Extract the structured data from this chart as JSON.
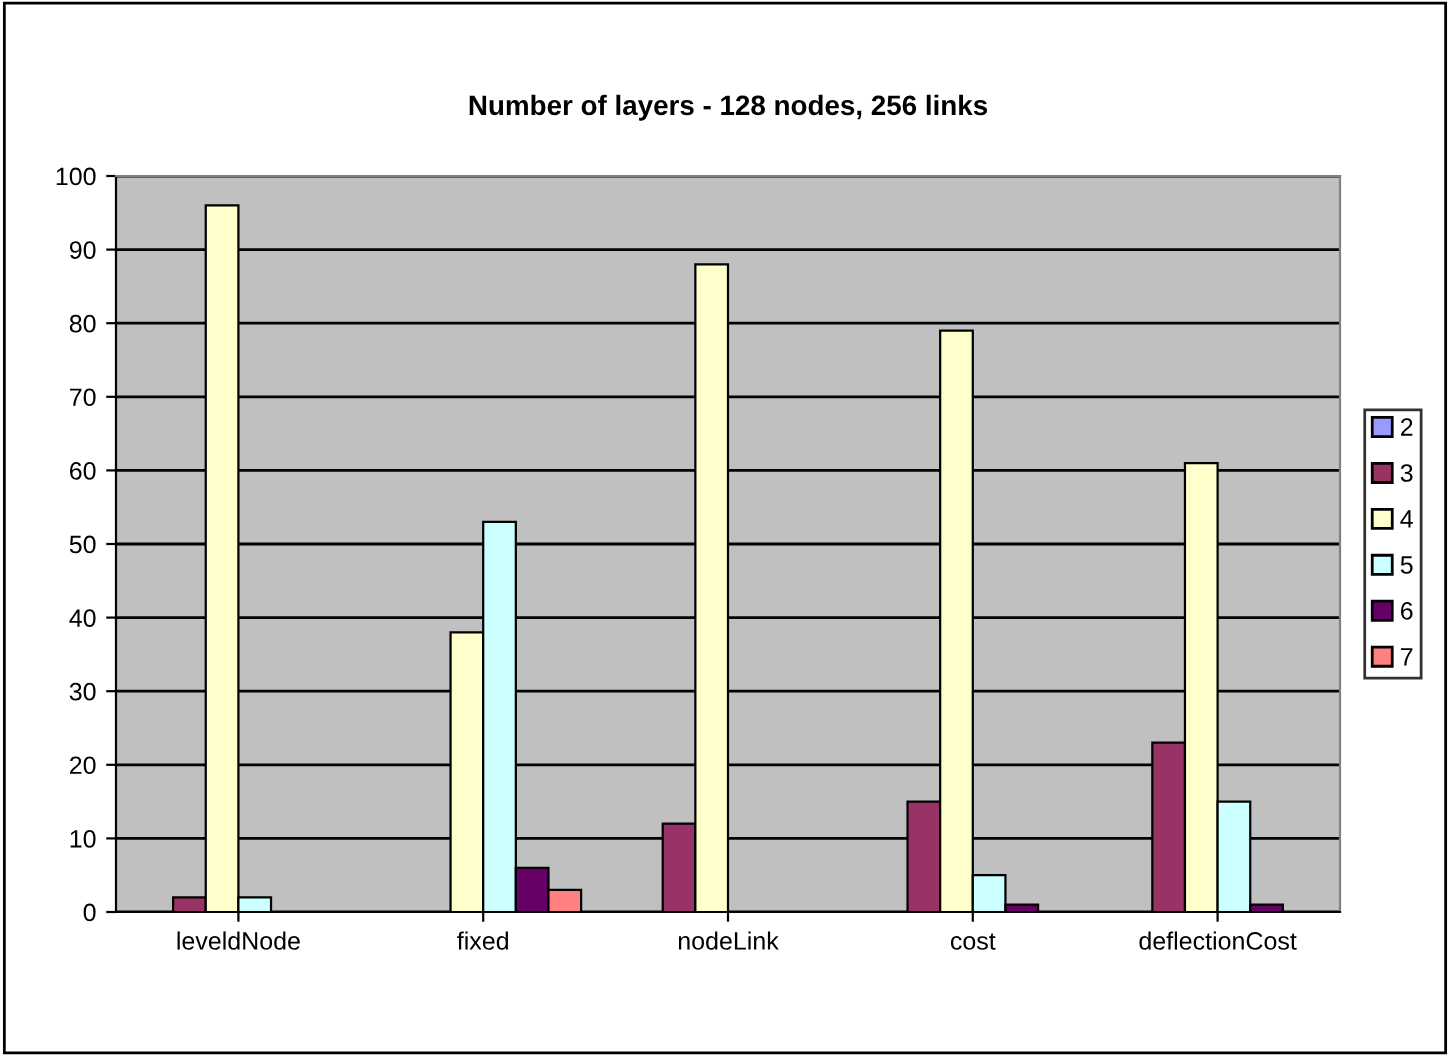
{
  "chart_data": {
    "type": "bar",
    "title": "Number of layers - 128 nodes, 256 links",
    "categories": [
      "leveldNode",
      "fixed",
      "nodeLink",
      "cost",
      "deflectionCost"
    ],
    "series": [
      {
        "name": "2",
        "color": "#9999ff",
        "values": [
          0,
          0,
          0,
          0,
          0
        ]
      },
      {
        "name": "3",
        "color": "#993366",
        "values": [
          2,
          0,
          12,
          15,
          23
        ]
      },
      {
        "name": "4",
        "color": "#ffffcc",
        "values": [
          96,
          38,
          88,
          79,
          61
        ]
      },
      {
        "name": "5",
        "color": "#ccffff",
        "values": [
          2,
          53,
          0,
          5,
          15
        ]
      },
      {
        "name": "6",
        "color": "#660066",
        "values": [
          0,
          6,
          0,
          1,
          1
        ]
      },
      {
        "name": "7",
        "color": "#ff8080",
        "values": [
          0,
          3,
          0,
          0,
          0
        ]
      }
    ],
    "ylim": [
      0,
      100
    ],
    "yticks": [
      0,
      10,
      20,
      30,
      40,
      50,
      60,
      70,
      80,
      90,
      100
    ],
    "grid": "y",
    "legend": "right"
  }
}
